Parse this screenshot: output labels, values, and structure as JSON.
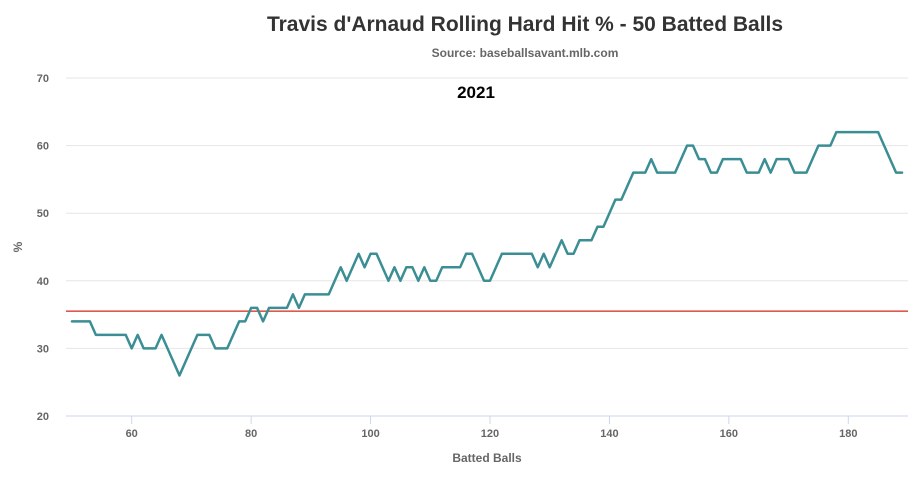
{
  "chart_data": {
    "type": "line",
    "title": "Travis d'Arnaud Rolling Hard Hit % - 50 Batted Balls",
    "subtitle": "Source: baseballsavant.mlb.com",
    "annotation": "2021",
    "xlabel": "Batted Balls",
    "ylabel": "%",
    "xlim": [
      49,
      190
    ],
    "ylim": [
      20,
      70
    ],
    "x_ticks": [
      "60",
      "80",
      "100",
      "120",
      "140",
      "160",
      "180"
    ],
    "y_ticks": [
      "20",
      "30",
      "40",
      "50",
      "60",
      "70"
    ],
    "grid": true,
    "legend": "none",
    "series": [
      {
        "color": "#3a8e94",
        "points": [
          [
            50,
            34
          ],
          [
            51,
            34
          ],
          [
            52,
            34
          ],
          [
            53,
            34
          ],
          [
            54,
            32
          ],
          [
            55,
            32
          ],
          [
            56,
            32
          ],
          [
            57,
            32
          ],
          [
            58,
            32
          ],
          [
            59,
            32
          ],
          [
            60,
            30
          ],
          [
            61,
            32
          ],
          [
            62,
            30
          ],
          [
            63,
            30
          ],
          [
            64,
            30
          ],
          [
            65,
            32
          ],
          [
            66,
            30
          ],
          [
            67,
            28
          ],
          [
            68,
            26
          ],
          [
            69,
            28
          ],
          [
            70,
            30
          ],
          [
            71,
            32
          ],
          [
            72,
            32
          ],
          [
            73,
            32
          ],
          [
            74,
            30
          ],
          [
            75,
            30
          ],
          [
            76,
            30
          ],
          [
            77,
            32
          ],
          [
            78,
            34
          ],
          [
            79,
            34
          ],
          [
            80,
            36
          ],
          [
            81,
            36
          ],
          [
            82,
            34
          ],
          [
            83,
            36
          ],
          [
            84,
            36
          ],
          [
            85,
            36
          ],
          [
            86,
            36
          ],
          [
            87,
            38
          ],
          [
            88,
            36
          ],
          [
            89,
            38
          ],
          [
            90,
            38
          ],
          [
            91,
            38
          ],
          [
            92,
            38
          ],
          [
            93,
            38
          ],
          [
            94,
            40
          ],
          [
            95,
            42
          ],
          [
            96,
            40
          ],
          [
            97,
            42
          ],
          [
            98,
            44
          ],
          [
            99,
            42
          ],
          [
            100,
            44
          ],
          [
            101,
            44
          ],
          [
            102,
            42
          ],
          [
            103,
            40
          ],
          [
            104,
            42
          ],
          [
            105,
            40
          ],
          [
            106,
            42
          ],
          [
            107,
            42
          ],
          [
            108,
            40
          ],
          [
            109,
            42
          ],
          [
            110,
            40
          ],
          [
            111,
            40
          ],
          [
            112,
            42
          ],
          [
            113,
            42
          ],
          [
            114,
            42
          ],
          [
            115,
            42
          ],
          [
            116,
            44
          ],
          [
            117,
            44
          ],
          [
            118,
            42
          ],
          [
            119,
            40
          ],
          [
            120,
            40
          ],
          [
            121,
            42
          ],
          [
            122,
            44
          ],
          [
            123,
            44
          ],
          [
            124,
            44
          ],
          [
            125,
            44
          ],
          [
            126,
            44
          ],
          [
            127,
            44
          ],
          [
            128,
            42
          ],
          [
            129,
            44
          ],
          [
            130,
            42
          ],
          [
            131,
            44
          ],
          [
            132,
            46
          ],
          [
            133,
            44
          ],
          [
            134,
            44
          ],
          [
            135,
            46
          ],
          [
            136,
            46
          ],
          [
            137,
            46
          ],
          [
            138,
            48
          ],
          [
            139,
            48
          ],
          [
            140,
            50
          ],
          [
            141,
            52
          ],
          [
            142,
            52
          ],
          [
            143,
            54
          ],
          [
            144,
            56
          ],
          [
            145,
            56
          ],
          [
            146,
            56
          ],
          [
            147,
            58
          ],
          [
            148,
            56
          ],
          [
            149,
            56
          ],
          [
            150,
            56
          ],
          [
            151,
            56
          ],
          [
            152,
            58
          ],
          [
            153,
            60
          ],
          [
            154,
            60
          ],
          [
            155,
            58
          ],
          [
            156,
            58
          ],
          [
            157,
            56
          ],
          [
            158,
            56
          ],
          [
            159,
            58
          ],
          [
            160,
            58
          ],
          [
            161,
            58
          ],
          [
            162,
            58
          ],
          [
            163,
            56
          ],
          [
            164,
            56
          ],
          [
            165,
            56
          ],
          [
            166,
            58
          ],
          [
            167,
            56
          ],
          [
            168,
            58
          ],
          [
            169,
            58
          ],
          [
            170,
            58
          ],
          [
            171,
            56
          ],
          [
            172,
            56
          ],
          [
            173,
            56
          ],
          [
            174,
            58
          ],
          [
            175,
            60
          ],
          [
            176,
            60
          ],
          [
            177,
            60
          ],
          [
            178,
            62
          ],
          [
            179,
            62
          ],
          [
            180,
            62
          ],
          [
            181,
            62
          ],
          [
            182,
            62
          ],
          [
            183,
            62
          ],
          [
            184,
            62
          ],
          [
            185,
            62
          ],
          [
            186,
            60
          ],
          [
            187,
            58
          ],
          [
            188,
            56
          ],
          [
            189,
            56
          ]
        ]
      }
    ],
    "reference_line": {
      "y": 35.5,
      "color": "#e0584e"
    }
  }
}
